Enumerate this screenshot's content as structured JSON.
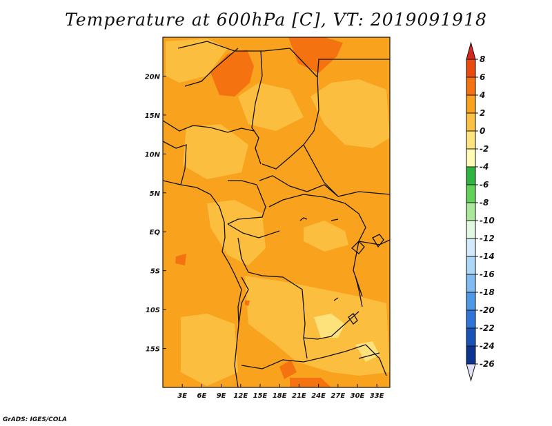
{
  "title": "Temperature at 600hPa [C], VT: 2019091918",
  "credit": "GrADS: IGES/COLA",
  "map": {
    "lon_range": [
      0,
      35
    ],
    "lat_range": [
      -20,
      25
    ],
    "lon_ticks": [
      {
        "value": 3,
        "label": "3E"
      },
      {
        "value": 6,
        "label": "6E"
      },
      {
        "value": 9,
        "label": "9E"
      },
      {
        "value": 12,
        "label": "12E"
      },
      {
        "value": 15,
        "label": "15E"
      },
      {
        "value": 18,
        "label": "18E"
      },
      {
        "value": 21,
        "label": "21E"
      },
      {
        "value": 24,
        "label": "24E"
      },
      {
        "value": 27,
        "label": "27E"
      },
      {
        "value": 30,
        "label": "30E"
      },
      {
        "value": 33,
        "label": "33E"
      }
    ],
    "lat_ticks": [
      {
        "value": 20,
        "label": "20N"
      },
      {
        "value": 15,
        "label": "15N"
      },
      {
        "value": 10,
        "label": "10N"
      },
      {
        "value": 5,
        "label": "5N"
      },
      {
        "value": 0,
        "label": "EQ"
      },
      {
        "value": -5,
        "label": "5S"
      },
      {
        "value": -10,
        "label": "10S"
      },
      {
        "value": -15,
        "label": "15S"
      }
    ]
  },
  "colorbar": {
    "levels": [
      8,
      6,
      4,
      2,
      0,
      -2,
      -4,
      -6,
      -8,
      -10,
      -12,
      -14,
      -16,
      -18,
      -20,
      -22,
      -24,
      -26
    ],
    "labels": [
      "8",
      "6",
      "4",
      "2",
      "0",
      "-2",
      "-4",
      "-6",
      "-8",
      "-10",
      "-12",
      "-14",
      "-16",
      "-18",
      "-20",
      "-22",
      "-24",
      "-26"
    ],
    "colors": [
      "#d7261e",
      "#ea4a0c",
      "#f57210",
      "#f9a21e",
      "#fbc142",
      "#fde480",
      "#fffbb6",
      "#2fb442",
      "#62d158",
      "#a9e89b",
      "#e1f8e1",
      "#d2eaf9",
      "#acd7f6",
      "#82bbf1",
      "#4f97e7",
      "#2f74d6",
      "#1a53b7",
      "#0c338f",
      "#0a1d6b",
      "#e0e0f6"
    ]
  }
}
